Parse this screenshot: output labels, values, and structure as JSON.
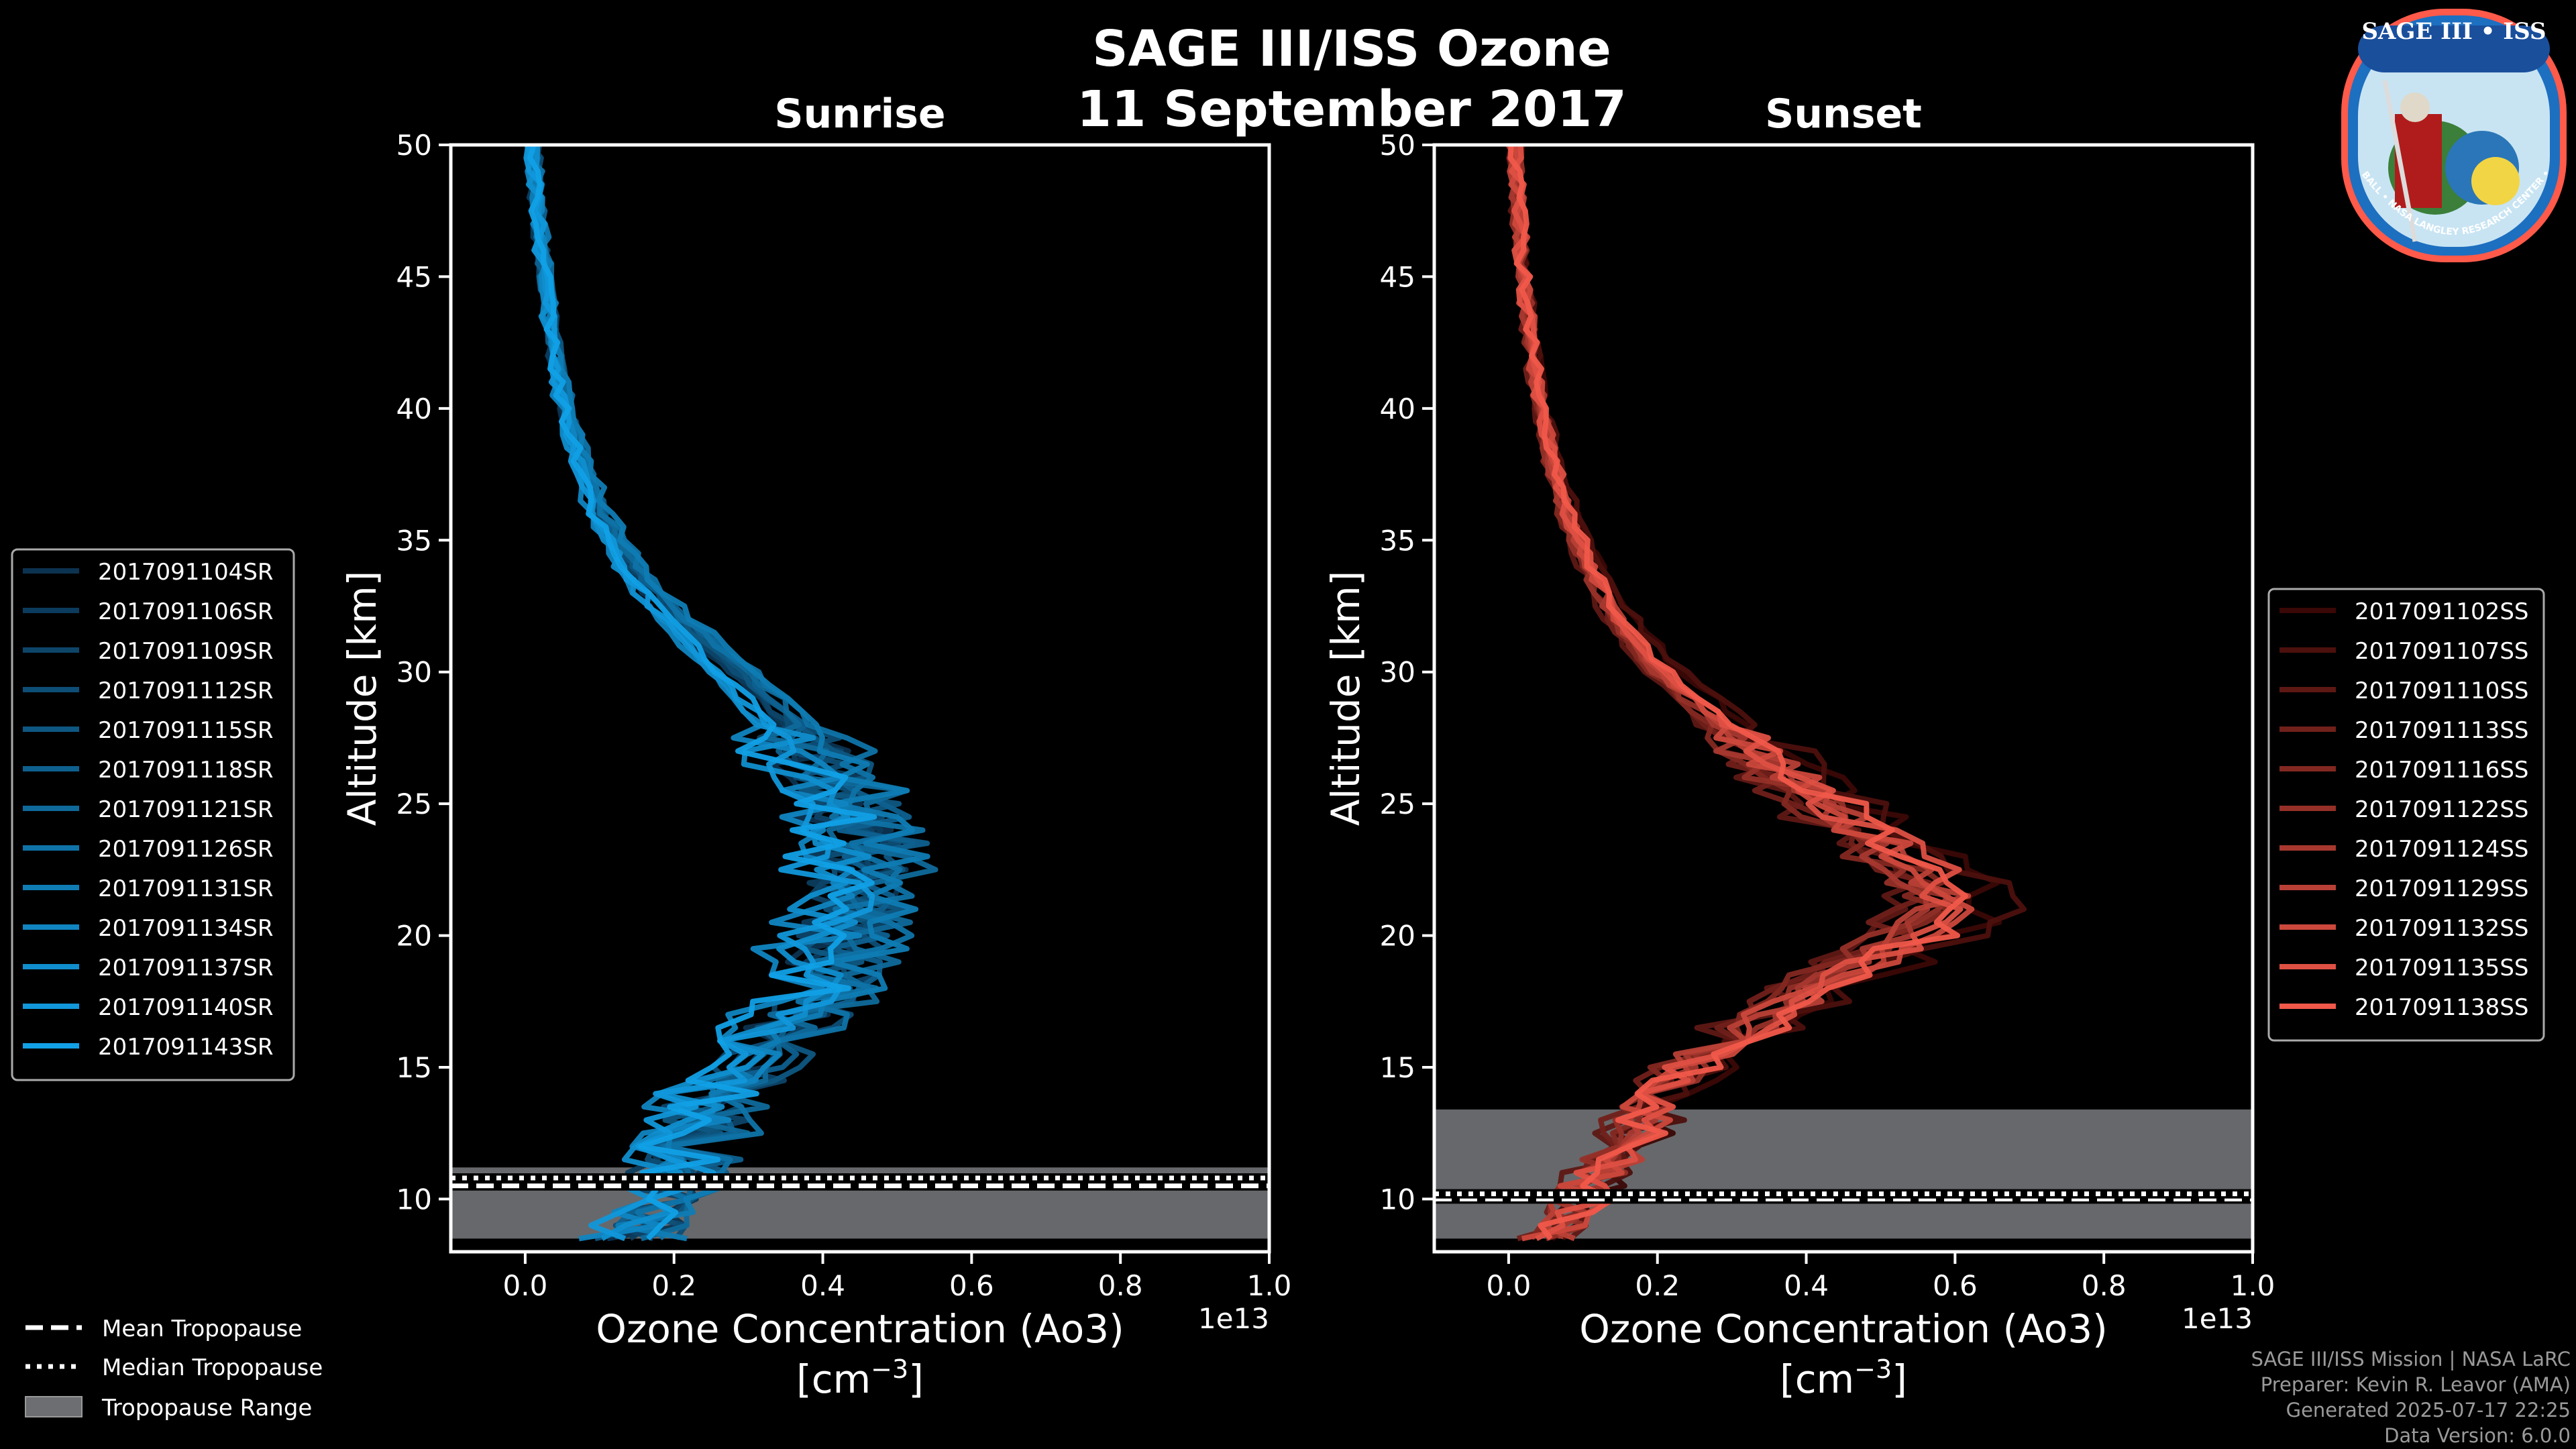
{
  "title_line1": "SAGE III/ISS Ozone",
  "title_line2": "11 September 2017",
  "logo": {
    "name": "SAGE III • ISS",
    "ring_text": "BALL • NASA LANGLEY RESEARCH CENTER • TAS-I • ESA"
  },
  "credits": [
    "SAGE III/ISS Mission | NASA LaRC",
    "Preparer: Kevin R. Leavor (AMA)",
    "Generated 2025-07-17 22:25",
    "Data Version: 6.0.0"
  ],
  "bottom_legend": {
    "mean": "Mean Tropopause",
    "median": "Median Tropopause",
    "range": "Tropopause Range"
  },
  "chart_data": [
    {
      "type": "line",
      "title": "Sunrise",
      "xlabel": "Ozone Concentration (Ao3)",
      "xlabel_unit_base": "[cm",
      "xlabel_unit_sup": "−3",
      "xlabel_unit_end": "]",
      "ylabel": "Altitude [km]",
      "x_offset_text": "1e13",
      "xlim": [
        -0.1,
        1.0
      ],
      "ylim": [
        8,
        50
      ],
      "xticks": [
        0.0,
        0.2,
        0.4,
        0.6,
        0.8,
        1.0
      ],
      "xtick_labels": [
        "0.0",
        "0.2",
        "0.4",
        "0.6",
        "0.8",
        "1.0"
      ],
      "yticks": [
        10,
        15,
        20,
        25,
        30,
        35,
        40,
        45,
        50
      ],
      "ytick_labels": [
        "10",
        "15",
        "20",
        "25",
        "30",
        "35",
        "40",
        "45",
        "50"
      ],
      "tropopause": {
        "mean": 10.5,
        "median": 10.8,
        "range": [
          8.5,
          11.2
        ]
      },
      "base_colors": [
        "#0c3350",
        "#11a0e6"
      ],
      "base_profile": {
        "alt": [
          8.5,
          10,
          12,
          14,
          16,
          18,
          20,
          22,
          24,
          26,
          28,
          30,
          32,
          34,
          36,
          38,
          40,
          42,
          44,
          46,
          48,
          50
        ],
        "o3": [
          0.15,
          0.18,
          0.22,
          0.26,
          0.33,
          0.4,
          0.43,
          0.45,
          0.44,
          0.4,
          0.35,
          0.28,
          0.2,
          0.14,
          0.1,
          0.075,
          0.055,
          0.04,
          0.03,
          0.022,
          0.015,
          0.01
        ]
      },
      "series": [
        {
          "name": "2017091104SR"
        },
        {
          "name": "2017091106SR"
        },
        {
          "name": "2017091109SR"
        },
        {
          "name": "2017091112SR"
        },
        {
          "name": "2017091115SR"
        },
        {
          "name": "2017091118SR"
        },
        {
          "name": "2017091121SR"
        },
        {
          "name": "2017091126SR"
        },
        {
          "name": "2017091131SR"
        },
        {
          "name": "2017091134SR"
        },
        {
          "name": "2017091137SR"
        },
        {
          "name": "2017091140SR"
        },
        {
          "name": "2017091143SR"
        }
      ]
    },
    {
      "type": "line",
      "title": "Sunset",
      "xlabel": "Ozone Concentration (Ao3)",
      "xlabel_unit_base": "[cm",
      "xlabel_unit_sup": "−3",
      "xlabel_unit_end": "]",
      "ylabel": "Altitude [km]",
      "x_offset_text": "1e13",
      "xlim": [
        -0.1,
        1.0
      ],
      "ylim": [
        8,
        50
      ],
      "xticks": [
        0.0,
        0.2,
        0.4,
        0.6,
        0.8,
        1.0
      ],
      "xtick_labels": [
        "0.0",
        "0.2",
        "0.4",
        "0.6",
        "0.8",
        "1.0"
      ],
      "yticks": [
        10,
        15,
        20,
        25,
        30,
        35,
        40,
        45,
        50
      ],
      "ytick_labels": [
        "10",
        "15",
        "20",
        "25",
        "30",
        "35",
        "40",
        "45",
        "50"
      ],
      "tropopause": {
        "mean": 10.0,
        "median": 10.2,
        "range": [
          8.5,
          13.4
        ]
      },
      "base_colors": [
        "#3a0806",
        "#f0584a"
      ],
      "base_profile": {
        "alt": [
          8.2,
          10,
          12,
          14,
          16,
          18,
          20,
          21,
          22,
          24,
          26,
          28,
          30,
          32,
          34,
          36,
          38,
          40,
          42,
          44,
          46,
          48,
          50
        ],
        "o3": [
          0.05,
          0.1,
          0.15,
          0.2,
          0.3,
          0.42,
          0.55,
          0.6,
          0.58,
          0.48,
          0.38,
          0.29,
          0.21,
          0.15,
          0.11,
          0.08,
          0.06,
          0.045,
          0.033,
          0.024,
          0.017,
          0.012,
          0.008
        ]
      },
      "series": [
        {
          "name": "2017091102SS"
        },
        {
          "name": "2017091107SS"
        },
        {
          "name": "2017091110SS"
        },
        {
          "name": "2017091113SS"
        },
        {
          "name": "2017091116SS"
        },
        {
          "name": "2017091122SS"
        },
        {
          "name": "2017091124SS"
        },
        {
          "name": "2017091129SS"
        },
        {
          "name": "2017091132SS"
        },
        {
          "name": "2017091135SS"
        },
        {
          "name": "2017091138SS"
        }
      ]
    }
  ]
}
